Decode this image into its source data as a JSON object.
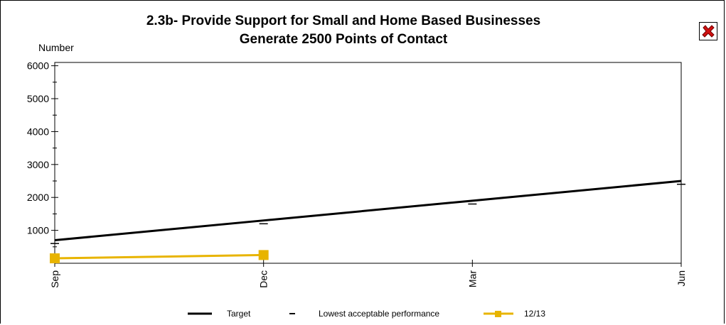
{
  "title": "2.3b- Provide Support for Small and Home Based Businesses",
  "subtitle": "Generate 2500 Points of Contact",
  "ylabel": "Number",
  "close_icon": "close-x-icon",
  "colors": {
    "target": "#000000",
    "lowest": "#000000",
    "series_1213": "#e8b400"
  },
  "chart_data": {
    "type": "line",
    "title": "2.3b- Provide Support for Small and Home Based Businesses",
    "subtitle": "Generate 2500 Points of Contact",
    "ylabel": "Number",
    "xlabel": "",
    "categories": [
      "Sep",
      "Dec",
      "Mar",
      "Jun"
    ],
    "ylim": [
      0,
      6100
    ],
    "yticks": [
      1000,
      2000,
      3000,
      4000,
      5000,
      6000
    ],
    "grid": false,
    "legend_position": "bottom",
    "series": [
      {
        "name": "Target",
        "style": "line",
        "values": [
          700,
          1300,
          1900,
          2500
        ]
      },
      {
        "name": "Lowest acceptable performance",
        "style": "dash-marker",
        "values": [
          600,
          1200,
          1800,
          2400
        ]
      },
      {
        "name": "12/13",
        "style": "line-square",
        "values": [
          150,
          250,
          null,
          null
        ]
      }
    ]
  }
}
